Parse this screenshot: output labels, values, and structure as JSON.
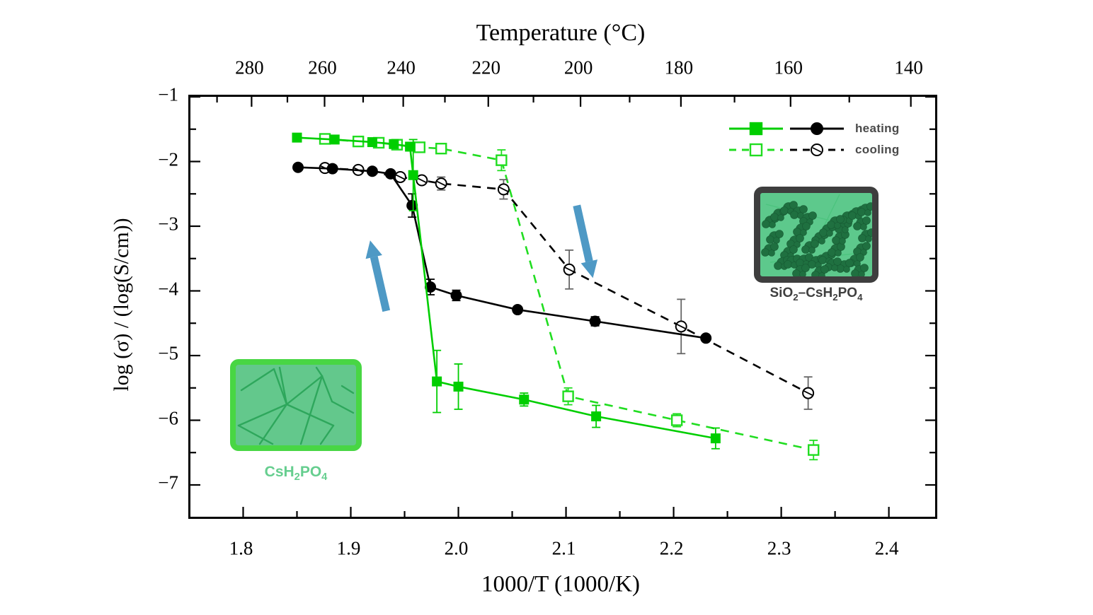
{
  "chart_data": {
    "type": "line",
    "description": "Conductivity log(sigma) versus 1000/T for CsH2PO4 and SiO2-CsH2PO4 during heating and cooling",
    "top_axis": {
      "title": "Temperature (°C)",
      "major_ticks": [
        280,
        260,
        240,
        220,
        200,
        180,
        160,
        140
      ],
      "minor_ticks": [
        290,
        270,
        250,
        230,
        210,
        190,
        170,
        150
      ]
    },
    "x_axis": {
      "title": "1000/T (1000/K)",
      "range": [
        1.751,
        2.443
      ],
      "major_ticks": [
        1.8,
        1.9,
        2.0,
        2.1,
        2.2,
        2.3,
        2.4
      ],
      "minor_ticks": [
        1.85,
        1.95,
        2.05,
        2.15,
        2.25,
        2.35
      ]
    },
    "y_axis": {
      "title": "log (σ) / (log(S/cm))",
      "range": [
        -7.49,
        -1.0
      ],
      "major_ticks": [
        -1,
        -2,
        -3,
        -4,
        -5,
        -6,
        -7
      ],
      "minor_ticks": [
        -1.5,
        -2.5,
        -3.5,
        -4.5,
        -5.5,
        -6.5
      ]
    },
    "series": [
      {
        "id": "csh2po4-cooling",
        "material": "CsH2PO4",
        "phase": "cooling",
        "color": "#21DD21",
        "line": "dashed",
        "marker": "square-open",
        "points": [
          {
            "x": 1.876,
            "y": -1.65,
            "err": 0
          },
          {
            "x": 1.907,
            "y": -1.69,
            "err": 0
          },
          {
            "x": 1.926,
            "y": -1.71,
            "err": 0
          },
          {
            "x": 1.943,
            "y": -1.74,
            "err": 0
          },
          {
            "x": 1.964,
            "y": -1.78,
            "err": 0
          },
          {
            "x": 1.984,
            "y": -1.8,
            "err": 0
          },
          {
            "x": 2.04,
            "y": -1.98,
            "err": 0.16
          },
          {
            "x": 2.102,
            "y": -5.63,
            "err": 0.13
          },
          {
            "x": 2.203,
            "y": -6.0,
            "err": 0.1
          },
          {
            "x": 2.33,
            "y": -6.46,
            "err": 0.15
          }
        ]
      },
      {
        "id": "sio2-csh2po4-cooling",
        "material": "SiO2-CsH2PO4",
        "phase": "cooling",
        "color": "#000000",
        "err_color": "#666666",
        "line": "dashed",
        "marker": "circle-open-slash",
        "points": [
          {
            "x": 1.876,
            "y": -2.1,
            "err": 0
          },
          {
            "x": 1.907,
            "y": -2.13,
            "err": 0
          },
          {
            "x": 1.946,
            "y": -2.24,
            "err": 0
          },
          {
            "x": 1.966,
            "y": -2.29,
            "err": 0
          },
          {
            "x": 1.984,
            "y": -2.34,
            "err": 0.1
          },
          {
            "x": 2.042,
            "y": -2.43,
            "err": 0.15
          },
          {
            "x": 2.103,
            "y": -3.67,
            "err": 0.3
          },
          {
            "x": 2.207,
            "y": -4.55,
            "err": 0.42
          },
          {
            "x": 2.325,
            "y": -5.58,
            "err": 0.25
          }
        ]
      },
      {
        "id": "sio2-csh2po4-heating",
        "material": "SiO2-CsH2PO4",
        "phase": "heating",
        "color": "#000000",
        "line": "solid",
        "marker": "circle-filled",
        "points": [
          {
            "x": 1.851,
            "y": -2.09,
            "err": 0
          },
          {
            "x": 1.883,
            "y": -2.11,
            "err": 0
          },
          {
            "x": 1.92,
            "y": -2.15,
            "err": 0
          },
          {
            "x": 1.937,
            "y": -2.19,
            "err": 0
          },
          {
            "x": 1.957,
            "y": -2.68,
            "err": 0.18
          },
          {
            "x": 1.974,
            "y": -3.94,
            "err": 0.12
          },
          {
            "x": 1.998,
            "y": -4.07,
            "err": 0.08
          },
          {
            "x": 2.055,
            "y": -4.29,
            "err": 0
          },
          {
            "x": 2.127,
            "y": -4.47,
            "err": 0.07
          },
          {
            "x": 2.23,
            "y": -4.73,
            "err": 0
          }
        ]
      },
      {
        "id": "csh2po4-heating",
        "material": "CsH2PO4",
        "phase": "heating",
        "color": "#00CE00",
        "line": "solid",
        "marker": "square-filled",
        "points": [
          {
            "x": 1.85,
            "y": -1.63,
            "err": 0
          },
          {
            "x": 1.885,
            "y": -1.66,
            "err": 0
          },
          {
            "x": 1.92,
            "y": -1.7,
            "err": 0
          },
          {
            "x": 1.94,
            "y": -1.73,
            "err": 0
          },
          {
            "x": 1.955,
            "y": -1.77,
            "err": 0
          },
          {
            "x": 1.958,
            "y": -2.21,
            "err": 0.55
          },
          {
            "x": 1.98,
            "y": -5.4,
            "err": 0.48
          },
          {
            "x": 2.0,
            "y": -5.48,
            "err": 0.35
          },
          {
            "x": 2.061,
            "y": -5.68,
            "err": 0.1
          },
          {
            "x": 2.128,
            "y": -5.94,
            "err": 0.17
          },
          {
            "x": 2.239,
            "y": -6.28,
            "err": 0.16
          }
        ]
      }
    ],
    "legend": {
      "text_color": "#4a4a4a",
      "rows": [
        {
          "label": "heating",
          "swatches": [
            {
              "color": "#00CE00",
              "line": "solid",
              "marker": "square-filled"
            },
            {
              "color": "#000000",
              "line": "solid",
              "marker": "circle-filled"
            }
          ]
        },
        {
          "label": "cooling",
          "swatches": [
            {
              "color": "#21DD21",
              "line": "dashed",
              "marker": "square-open"
            },
            {
              "color": "#000000",
              "line": "dashed",
              "marker": "circle-open-slash"
            }
          ]
        }
      ]
    },
    "annotations": {
      "arrow_color": "#4E99C5",
      "arrows": [
        {
          "id": "heating-jump-arrow",
          "direction": "up",
          "x1": 1.933,
          "y1": -4.31,
          "x2": 1.918,
          "y2": -3.22
        },
        {
          "id": "cooling-drop-arrow",
          "direction": "down",
          "x1": 2.11,
          "y1": -2.68,
          "x2": 2.125,
          "y2": -3.8
        }
      ]
    },
    "insets": [
      {
        "id": "csh2po4-inset",
        "texture": "cracks",
        "fill": "#63C88C",
        "border_color": "#48D644",
        "line_color": "#2EA75C",
        "label_color": "#66CE8F",
        "label_parts": [
          {
            "t": "CsH"
          },
          {
            "t": "2",
            "sub": true
          },
          {
            "t": "PO"
          },
          {
            "t": "4",
            "sub": true
          }
        ]
      },
      {
        "id": "sio2-csh2po4-inset",
        "texture": "aggregates",
        "fill": "#5DC98C",
        "border_color": "#3E3E3E",
        "blob_color": "#1F7040",
        "label_color": "#3F3F3F",
        "label_parts": [
          {
            "t": "SiO"
          },
          {
            "t": "2",
            "sub": true
          },
          {
            "t": "–CsH"
          },
          {
            "t": "2",
            "sub": true
          },
          {
            "t": "PO"
          },
          {
            "t": "4",
            "sub": true
          }
        ]
      }
    ]
  }
}
